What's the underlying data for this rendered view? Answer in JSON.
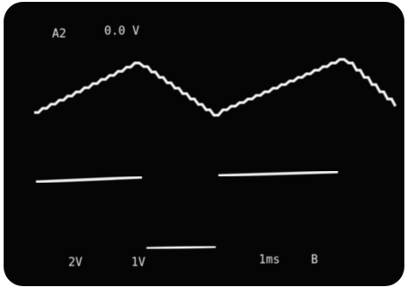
{
  "header": {
    "channel": "A2",
    "reading": "0.0 V"
  },
  "footer": {
    "ch1_scale": "2V",
    "ch2_scale": "1V",
    "timebase": "1ms",
    "mode": "B"
  }
}
